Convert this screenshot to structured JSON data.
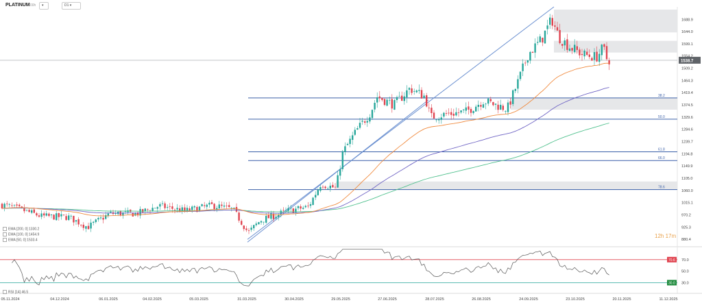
{
  "header": {
    "symbol": "PLATINUM",
    "symbol_sub": "00h",
    "interval": "D1"
  },
  "chart_data": {
    "type": "candlestick",
    "instrument": "PLATINUM",
    "timeframe": "D1",
    "price_axis_ticks": [
      "1688.9",
      "1644.0",
      "1599.1",
      "1554.2",
      "1509.2",
      "1464.3",
      "1419.4",
      "1374.5",
      "1329.6",
      "1284.6",
      "1239.7",
      "1194.8",
      "1149.9",
      "1105.0",
      "1060.0",
      "1015.1",
      "970.2",
      "925.3",
      "880.4"
    ],
    "price_ylim": [
      858,
      1735
    ],
    "last_price": "1538.7",
    "date_ticks": [
      "05.11.2024",
      "04.12.2024",
      "06.01.2025",
      "04.02.2025",
      "05.03.2025",
      "31.03.2025",
      "30.04.2025",
      "29.05.2025",
      "27.06.2025",
      "28.07.2025",
      "26.08.2025",
      "24.09.2025",
      "23.10.2025",
      "20.11.2025",
      "11.12.2025"
    ],
    "fibonacci_levels": [
      {
        "label": "38.2",
        "price": 1400
      },
      {
        "label": "50.0",
        "price": 1322
      },
      {
        "label": "61.8",
        "price": 1202
      },
      {
        "label": "66.0",
        "price": 1170
      },
      {
        "label": "78.6",
        "price": 1063
      }
    ],
    "zones": [
      {
        "from": 1641,
        "to": 1725
      },
      {
        "from": 1567,
        "to": 1610
      },
      {
        "from": 1357,
        "to": 1400
      },
      {
        "from": 1063,
        "to": 1093
      }
    ],
    "indicators": [
      {
        "name": "EMA",
        "params": "[200, 0]",
        "value": "1330.2",
        "color": "#4fc08d"
      },
      {
        "name": "EMA",
        "params": "[100, 0]",
        "value": "1454.9",
        "color": "#6e63c4"
      },
      {
        "name": "EMA",
        "params": "[50, 0]",
        "value": "1533.4",
        "color": "#f08a3e"
      }
    ],
    "rsi": {
      "label": "RSI [14]",
      "value": "46.5",
      "ticks": [
        "70.0",
        "50.0",
        "30.0"
      ],
      "overbought": "70.6",
      "oversold": "30.0",
      "ylim": [
        15,
        90
      ]
    },
    "countdown": "12h 17m",
    "colors": {
      "up": "#26a69a",
      "down": "#e0434f",
      "fib": "#3a5fa8",
      "zone": "#e6e7e9",
      "trend": "#6a8fd0"
    }
  }
}
